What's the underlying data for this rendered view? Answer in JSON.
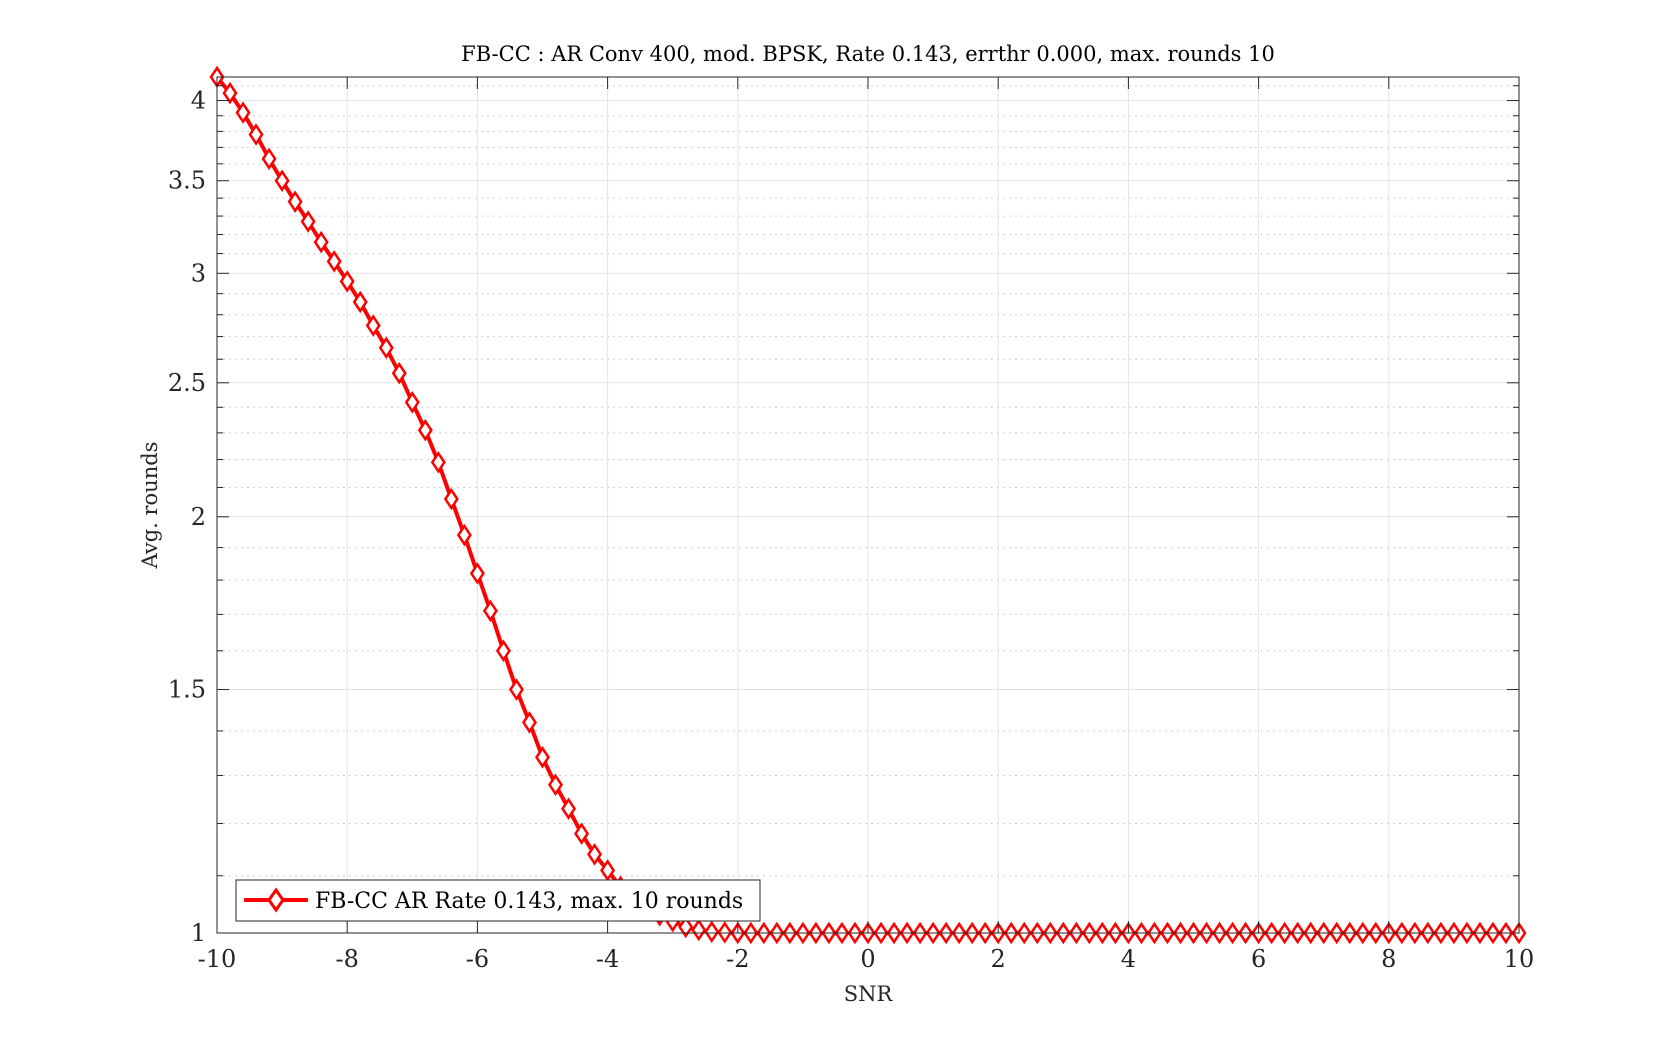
{
  "chart_data": {
    "type": "line",
    "title": "FB-CC : AR Conv 400, mod. BPSK, Rate 0.143, errthr 0.000, max. rounds 10",
    "xlabel": "SNR",
    "ylabel": "Avg. rounds",
    "xlim": [
      -10,
      10
    ],
    "ylim": [
      1,
      4.16
    ],
    "yscale": "log",
    "grid": true,
    "minor_grid": true,
    "legend_position": "bottom-left",
    "x_ticks": [
      -10,
      -8,
      -6,
      -4,
      -2,
      0,
      2,
      4,
      6,
      8,
      10
    ],
    "x_tick_labels": [
      "-10",
      "-8",
      "-6",
      "-4",
      "-2",
      "0",
      "2",
      "4",
      "6",
      "8",
      "10"
    ],
    "y_ticks": [
      1,
      1.5,
      2,
      2.5,
      3,
      3.5,
      4
    ],
    "y_tick_labels": [
      "1",
      "1.5",
      "2",
      "2.5",
      "3",
      "3.5",
      "4"
    ],
    "series": [
      {
        "name": "FB-CC AR Rate 0.143, max. 10 rounds",
        "color": "#ff0000",
        "marker": "diamond",
        "x": [
          -10,
          -9.8,
          -9.6,
          -9.4,
          -9.2,
          -9.0,
          -8.8,
          -8.6,
          -8.4,
          -8.2,
          -8.0,
          -7.8,
          -7.6,
          -7.4,
          -7.2,
          -7.0,
          -6.8,
          -6.6,
          -6.4,
          -6.2,
          -6.0,
          -5.8,
          -5.6,
          -5.4,
          -5.2,
          -5.0,
          -4.8,
          -4.6,
          -4.4,
          -4.2,
          -4.0,
          -3.8,
          -3.6,
          -3.4,
          -3.2,
          -3.0,
          -2.8,
          -2.6,
          -2.4,
          -2.2,
          -2.0,
          -1.8,
          -1.6,
          -1.4,
          -1.2,
          -1.0,
          -0.8,
          -0.6,
          -0.4,
          -0.2,
          0,
          0.2,
          0.4,
          0.6,
          0.8,
          1.0,
          1.2,
          1.4,
          1.6,
          1.8,
          2.0,
          2.2,
          2.4,
          2.6,
          2.8,
          3.0,
          3.2,
          3.4,
          3.6,
          3.8,
          4.0,
          4.2,
          4.4,
          4.6,
          4.8,
          5.0,
          5.2,
          5.4,
          5.6,
          5.8,
          6.0,
          6.2,
          6.4,
          6.6,
          6.8,
          7.0,
          7.2,
          7.4,
          7.6,
          7.8,
          8.0,
          8.2,
          8.4,
          8.6,
          8.8,
          9.0,
          9.2,
          9.4,
          9.6,
          9.8,
          10.0
        ],
        "y": [
          4.16,
          4.05,
          3.92,
          3.78,
          3.63,
          3.5,
          3.38,
          3.27,
          3.16,
          3.06,
          2.96,
          2.86,
          2.75,
          2.65,
          2.54,
          2.42,
          2.31,
          2.19,
          2.06,
          1.94,
          1.82,
          1.71,
          1.6,
          1.5,
          1.42,
          1.34,
          1.28,
          1.23,
          1.18,
          1.14,
          1.11,
          1.08,
          1.06,
          1.04,
          1.03,
          1.02,
          1.01,
          1.005,
          1.002,
          1.001,
          1,
          1,
          1,
          1,
          1,
          1,
          1,
          1,
          1,
          1,
          1,
          1,
          1,
          1,
          1,
          1,
          1,
          1,
          1,
          1,
          1,
          1,
          1,
          1,
          1,
          1,
          1,
          1,
          1,
          1,
          1,
          1,
          1,
          1,
          1,
          1,
          1,
          1,
          1,
          1,
          1,
          1,
          1,
          1,
          1,
          1,
          1,
          1,
          1,
          1,
          1,
          1,
          1,
          1,
          1,
          1,
          1,
          1,
          1,
          1,
          1
        ]
      }
    ]
  }
}
